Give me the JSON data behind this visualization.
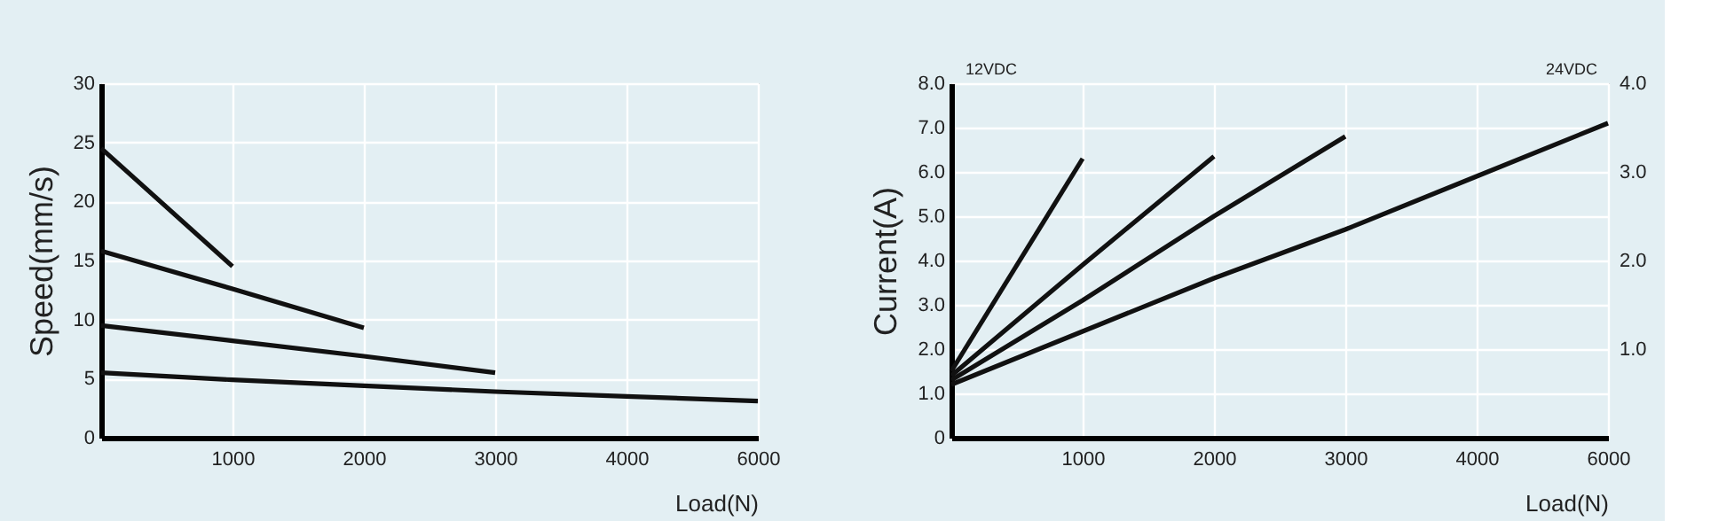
{
  "chart_data": [
    {
      "type": "line",
      "xlabel": "Load(N)",
      "ylabel": "Speed(mm/s)",
      "ylim": [
        0,
        30
      ],
      "categories": [
        null,
        "1000",
        "2000",
        "3000",
        "4000",
        "6000"
      ],
      "yticks": [
        0,
        5,
        10,
        15,
        20,
        25,
        30
      ],
      "grid": true,
      "legend": false,
      "marker": "none",
      "line_style": "solid",
      "series": [
        {
          "color": "#111111",
          "values": [
            24.5,
            14.5,
            null,
            null,
            null,
            null
          ]
        },
        {
          "color": "#111111",
          "values": [
            15.8,
            12.6,
            9.3,
            null,
            null,
            null
          ]
        },
        {
          "color": "#111111",
          "values": [
            9.5,
            8.2,
            6.9,
            5.5,
            null,
            null
          ]
        },
        {
          "color": "#111111",
          "values": [
            5.5,
            4.9,
            4.4,
            3.9,
            3.5,
            3.1
          ]
        }
      ]
    },
    {
      "type": "line",
      "xlabel": "Load(N)",
      "ylabel": "Current(A)",
      "ylim": [
        0,
        8
      ],
      "y2lim": [
        0,
        4
      ],
      "categories": [
        null,
        "1000",
        "2000",
        "3000",
        "4000",
        "6000"
      ],
      "yticks": [
        0,
        {
          "value": 1,
          "label": "1.0"
        },
        {
          "value": 2,
          "label": "2.0"
        },
        {
          "value": 3,
          "label": "3.0"
        },
        {
          "value": 4,
          "label": "4.0"
        },
        {
          "value": 5,
          "label": "5.0"
        },
        {
          "value": 6,
          "label": "6.0"
        },
        {
          "value": 7,
          "label": "7.0"
        },
        {
          "value": 8,
          "label": "8.0"
        }
      ],
      "y2ticks": [
        {
          "value": 1,
          "label": "1.0"
        },
        {
          "value": 2,
          "label": "2.0"
        },
        {
          "value": 3,
          "label": "3.0"
        },
        {
          "value": 4,
          "label": "4.0"
        }
      ],
      "grid": true,
      "legend": false,
      "marker": "none",
      "line_style": "solid",
      "annotations": [
        "12VDC",
        "24VDC"
      ],
      "series": [
        {
          "color": "#111111",
          "values": [
            1.5,
            6.3,
            null,
            null,
            null,
            null
          ]
        },
        {
          "color": "#111111",
          "values": [
            1.4,
            3.9,
            6.35,
            null,
            null,
            null
          ]
        },
        {
          "color": "#111111",
          "values": [
            1.3,
            3.1,
            5.0,
            6.8,
            null,
            null
          ]
        },
        {
          "color": "#111111",
          "values": [
            1.2,
            2.4,
            3.6,
            4.7,
            5.9,
            7.1
          ]
        }
      ]
    }
  ]
}
